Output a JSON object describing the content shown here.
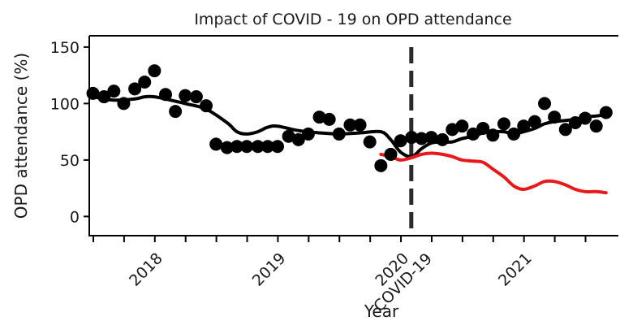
{
  "chart_data": {
    "type": "line",
    "title": "Impact of COVID - 19 on OPD attendance",
    "xlabel": "Year",
    "ylabel": "OPD attendance (%)",
    "ylim": [
      -17,
      160
    ],
    "xlim": [
      2017.55,
      2021.85
    ],
    "y_ticks": [
      0,
      50,
      100,
      150
    ],
    "x_ticks": [
      2017.583,
      2017.833,
      2018.083,
      2018.333,
      2018.583,
      2018.833,
      2019.083,
      2019.333,
      2019.583,
      2019.833,
      2020.083,
      2020.333,
      2020.583,
      2020.833,
      2021.083,
      2021.333,
      2021.583
    ],
    "x_tick_labels": [
      {
        "x": 2018.0,
        "label": "2018"
      },
      {
        "x": 2019.0,
        "label": "2019"
      },
      {
        "x": 2020.0,
        "label": "2020"
      },
      {
        "x": 2021.0,
        "label": "2021"
      }
    ],
    "intervention": {
      "x": 2020.167,
      "label": "COVID-19",
      "style": "dashed"
    },
    "grid": false,
    "legend": "none",
    "series": [
      {
        "kind": "points",
        "color": "#000000",
        "x": [
          2017.58,
          2017.67,
          2017.75,
          2017.83,
          2017.92,
          2018.0,
          2018.08,
          2018.17,
          2018.25,
          2018.33,
          2018.42,
          2018.5,
          2018.58,
          2018.67,
          2018.75,
          2018.83,
          2018.92,
          2019.0,
          2019.08,
          2019.17,
          2019.25,
          2019.33,
          2019.42,
          2019.5,
          2019.58,
          2019.67,
          2019.75,
          2019.83,
          2019.92,
          2020.0,
          2020.08,
          2020.17,
          2020.25,
          2020.33,
          2020.42,
          2020.5,
          2020.58,
          2020.67,
          2020.75,
          2020.83,
          2020.92,
          2021.0,
          2021.08,
          2021.17,
          2021.25,
          2021.33,
          2021.42,
          2021.5,
          2021.58,
          2021.67,
          2021.75
        ],
        "y": [
          109,
          106,
          111,
          100,
          113,
          119,
          129,
          108,
          93,
          107,
          106,
          98,
          64,
          61,
          62,
          62,
          62,
          62,
          62,
          71,
          68,
          73,
          88,
          86,
          73,
          81,
          81,
          66,
          45,
          55,
          67,
          70,
          69,
          70,
          68,
          77,
          80,
          73,
          78,
          72,
          82,
          73,
          80,
          84,
          100,
          88,
          77,
          83,
          87,
          80,
          92
        ]
      },
      {
        "kind": "line",
        "color": "#000000",
        "x": [
          2017.58,
          2017.75,
          2017.92,
          2018.0,
          2018.08,
          2018.17,
          2018.33,
          2018.5,
          2018.67,
          2018.75,
          2018.83,
          2018.92,
          2019.0,
          2019.08,
          2019.25,
          2019.42,
          2019.58,
          2019.75,
          2019.92,
          2020.0,
          2020.08,
          2020.17,
          2020.25,
          2020.33,
          2020.42,
          2020.5,
          2020.58,
          2020.67,
          2020.75,
          2020.83,
          2020.92,
          2021.0,
          2021.08,
          2021.17,
          2021.25,
          2021.33,
          2021.42,
          2021.5,
          2021.58,
          2021.67,
          2021.75
        ],
        "y": [
          106,
          103,
          104,
          106,
          106,
          104,
          100,
          95,
          83,
          75,
          73,
          75,
          79,
          80,
          76,
          74,
          73,
          74,
          75,
          68,
          57,
          53,
          60,
          65,
          66,
          66,
          69,
          71,
          74,
          75,
          75,
          73,
          75,
          78,
          82,
          84,
          85,
          86,
          88,
          89,
          90
        ]
      },
      {
        "kind": "line",
        "color": "#e8191b",
        "x": [
          2019.92,
          2020.0,
          2020.08,
          2020.17,
          2020.25,
          2020.33,
          2020.42,
          2020.5,
          2020.58,
          2020.67,
          2020.75,
          2020.83,
          2020.92,
          2021.0,
          2021.08,
          2021.17,
          2021.25,
          2021.33,
          2021.42,
          2021.5,
          2021.58,
          2021.67,
          2021.75
        ],
        "y": [
          55,
          53,
          50,
          52,
          55,
          56,
          55,
          53,
          50,
          49,
          48,
          42,
          35,
          27,
          24,
          27,
          31,
          31,
          28,
          24,
          22,
          22,
          21
        ]
      }
    ]
  }
}
